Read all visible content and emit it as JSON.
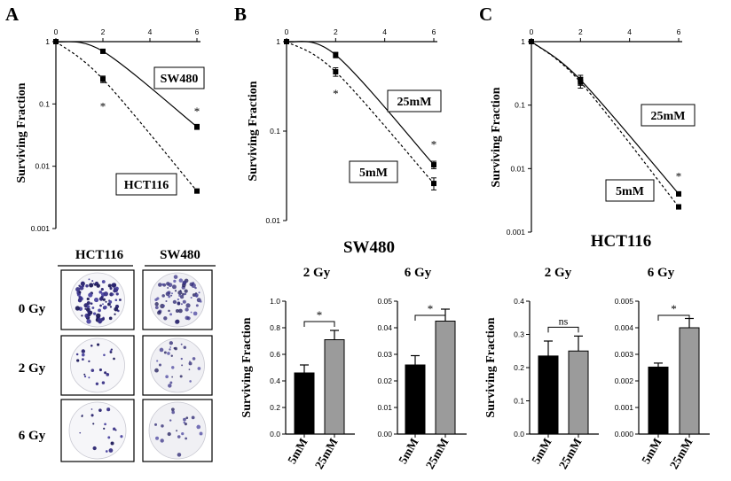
{
  "figure": {
    "colony": {
      "col_labels": [
        "HCT116",
        "SW480"
      ],
      "row_labels": [
        "0 Gy",
        "2 Gy",
        "6 Gy"
      ]
    },
    "cell_titles": [
      "SW480",
      "HCT116"
    ]
  },
  "chart_data": [
    {
      "panel": "A",
      "type": "line",
      "xticks": [
        0,
        2,
        4,
        6
      ],
      "xlim": [
        0,
        6
      ],
      "ylabel": "Surviving Fraction",
      "ylog": true,
      "ylim": [
        0.001,
        1
      ],
      "yticks": [
        1,
        0.1,
        0.01,
        0.001
      ],
      "ytick_labels": [
        "1",
        "0.1",
        "0.01",
        "0.001"
      ],
      "series": [
        {
          "name": "SW480",
          "style": "solid",
          "x": [
            0,
            2,
            6
          ],
          "y": [
            1,
            0.7,
            0.043
          ],
          "err": [
            0,
            0.05,
            0.004
          ]
        },
        {
          "name": "HCT116",
          "style": "dashed",
          "x": [
            0,
            2,
            6
          ],
          "y": [
            1,
            0.25,
            0.004
          ],
          "err": [
            0,
            0.03,
            0.0003
          ]
        }
      ],
      "markers": [
        {
          "x": 2,
          "y": 0.09,
          "text": "*"
        },
        {
          "x": 6,
          "y": 0.075,
          "text": "*"
        }
      ]
    },
    {
      "panel": "B",
      "type": "line",
      "xticks": [
        0,
        2,
        4,
        6
      ],
      "xlim": [
        0,
        6
      ],
      "ylabel": "Surviving Fraction",
      "ylog": true,
      "ylim": [
        0.01,
        1
      ],
      "yticks": [
        1,
        0.1,
        0.01
      ],
      "ytick_labels": [
        "1",
        "0.1",
        "0.01"
      ],
      "series": [
        {
          "name": "25mM",
          "style": "solid",
          "x": [
            0,
            2,
            6
          ],
          "y": [
            1,
            0.71,
            0.042
          ],
          "err": [
            0,
            0.05,
            0.004
          ]
        },
        {
          "name": "5mM",
          "style": "dashed",
          "x": [
            0,
            2,
            6
          ],
          "y": [
            1,
            0.46,
            0.026
          ],
          "err": [
            0,
            0.05,
            0.004
          ]
        }
      ],
      "markers": [
        {
          "x": 2,
          "y": 0.26,
          "text": "*"
        },
        {
          "x": 6,
          "y": 0.07,
          "text": "*"
        }
      ]
    },
    {
      "panel": "C",
      "type": "line",
      "xticks": [
        0,
        2,
        4,
        6
      ],
      "xlim": [
        0,
        6
      ],
      "ylabel": "Surviving Fraction",
      "ylog": true,
      "ylim": [
        0.001,
        1
      ],
      "yticks": [
        1,
        0.1,
        0.01,
        0.001
      ],
      "ytick_labels": [
        "1",
        "0.1",
        "0.01",
        "0.001"
      ],
      "series": [
        {
          "name": "25mM",
          "style": "solid",
          "x": [
            0,
            2,
            6
          ],
          "y": [
            1,
            0.25,
            0.004
          ],
          "err": [
            0,
            0.045,
            0.0003
          ]
        },
        {
          "name": "5mM",
          "style": "dashed",
          "x": [
            0,
            2,
            6
          ],
          "y": [
            1,
            0.23,
            0.0025
          ],
          "err": [
            0,
            0.045,
            0.0002
          ]
        }
      ],
      "markers": [
        {
          "x": 6,
          "y": 0.0075,
          "text": "*"
        }
      ]
    },
    {
      "panel": "SW480 2 Gy",
      "type": "bar",
      "title": "2 Gy",
      "ylabel": "Surviving Fraction",
      "categories": [
        "5mM",
        "25mM"
      ],
      "values": [
        0.46,
        0.71
      ],
      "errors": [
        0.06,
        0.07
      ],
      "colors": [
        "#000000",
        "#9b9b9b"
      ],
      "ylim": [
        0,
        1.0
      ],
      "yticks": [
        "0.0",
        "0.2",
        "0.4",
        "0.6",
        "0.8",
        "1.0"
      ],
      "ytick_values": [
        0,
        0.2,
        0.4,
        0.6,
        0.8,
        1.0
      ],
      "significance": "*"
    },
    {
      "panel": "SW480 6 Gy",
      "type": "bar",
      "title": "6 Gy",
      "categories": [
        "5mM",
        "25mM"
      ],
      "values": [
        0.026,
        0.0425
      ],
      "errors": [
        0.0035,
        0.0045
      ],
      "colors": [
        "#000000",
        "#9b9b9b"
      ],
      "ylim": [
        0,
        0.05
      ],
      "yticks": [
        "0.00",
        "0.01",
        "0.02",
        "0.03",
        "0.04",
        "0.05"
      ],
      "ytick_values": [
        0,
        0.01,
        0.02,
        0.03,
        0.04,
        0.05
      ],
      "significance": "*"
    },
    {
      "panel": "HCT116 2 Gy",
      "type": "bar",
      "title": "2 Gy",
      "ylabel": "Surviving Fraction",
      "categories": [
        "5mM",
        "25mM"
      ],
      "values": [
        0.235,
        0.25
      ],
      "errors": [
        0.045,
        0.045
      ],
      "colors": [
        "#000000",
        "#9b9b9b"
      ],
      "ylim": [
        0,
        0.4
      ],
      "yticks": [
        "0.0",
        "0.1",
        "0.2",
        "0.3",
        "0.4"
      ],
      "ytick_values": [
        0,
        0.1,
        0.2,
        0.3,
        0.4
      ],
      "significance": "ns"
    },
    {
      "panel": "HCT116 6 Gy",
      "type": "bar",
      "title": "6 Gy",
      "categories": [
        "5mM",
        "25mM"
      ],
      "values": [
        0.00252,
        0.004
      ],
      "errors": [
        0.00015,
        0.00035
      ],
      "colors": [
        "#000000",
        "#9b9b9b"
      ],
      "ylim": [
        0,
        0.005
      ],
      "yticks": [
        "0.000",
        "0.001",
        "0.002",
        "0.003",
        "0.004",
        "0.005"
      ],
      "ytick_values": [
        0,
        0.001,
        0.002,
        0.003,
        0.004,
        0.005
      ],
      "significance": "*"
    }
  ]
}
